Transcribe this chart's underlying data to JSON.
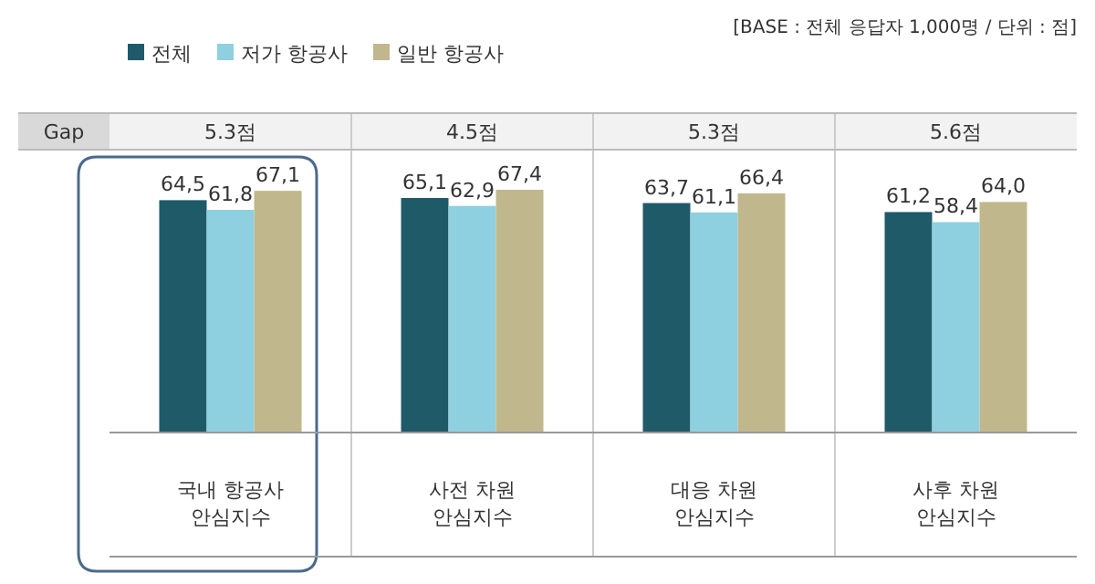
{
  "chart_data": {
    "type": "bar",
    "categories": [
      "국내 항공사\n안심지수",
      "사전 차원\n안심지수",
      "대응 차원\n안심지수",
      "사후 차원\n안심지수"
    ],
    "series": [
      {
        "name": "전체",
        "color": "#1f5a69",
        "values": [
          64.5,
          65.1,
          63.7,
          61.2
        ],
        "value_labels": [
          "64,5",
          "65,1",
          "63,7",
          "61,2"
        ]
      },
      {
        "name": "저가 항공사",
        "color": "#8ecfe0",
        "values": [
          61.8,
          62.9,
          61.1,
          58.4
        ],
        "value_labels": [
          "61,8",
          "62,9",
          "61,1",
          "58,4"
        ]
      },
      {
        "name": "일반 항공사",
        "color": "#c0b88c",
        "values": [
          67.1,
          67.4,
          66.4,
          64.0
        ],
        "value_labels": [
          "67,1",
          "67,4",
          "66,4",
          "64,0"
        ]
      }
    ],
    "legend": "top left",
    "annotations": [
      "[BASE : 전체 응답자 1,000명 / 단위 : 점]",
      "Gap",
      "5.3점",
      "4.5점",
      "5.3점",
      "5.6점"
    ]
  }
}
